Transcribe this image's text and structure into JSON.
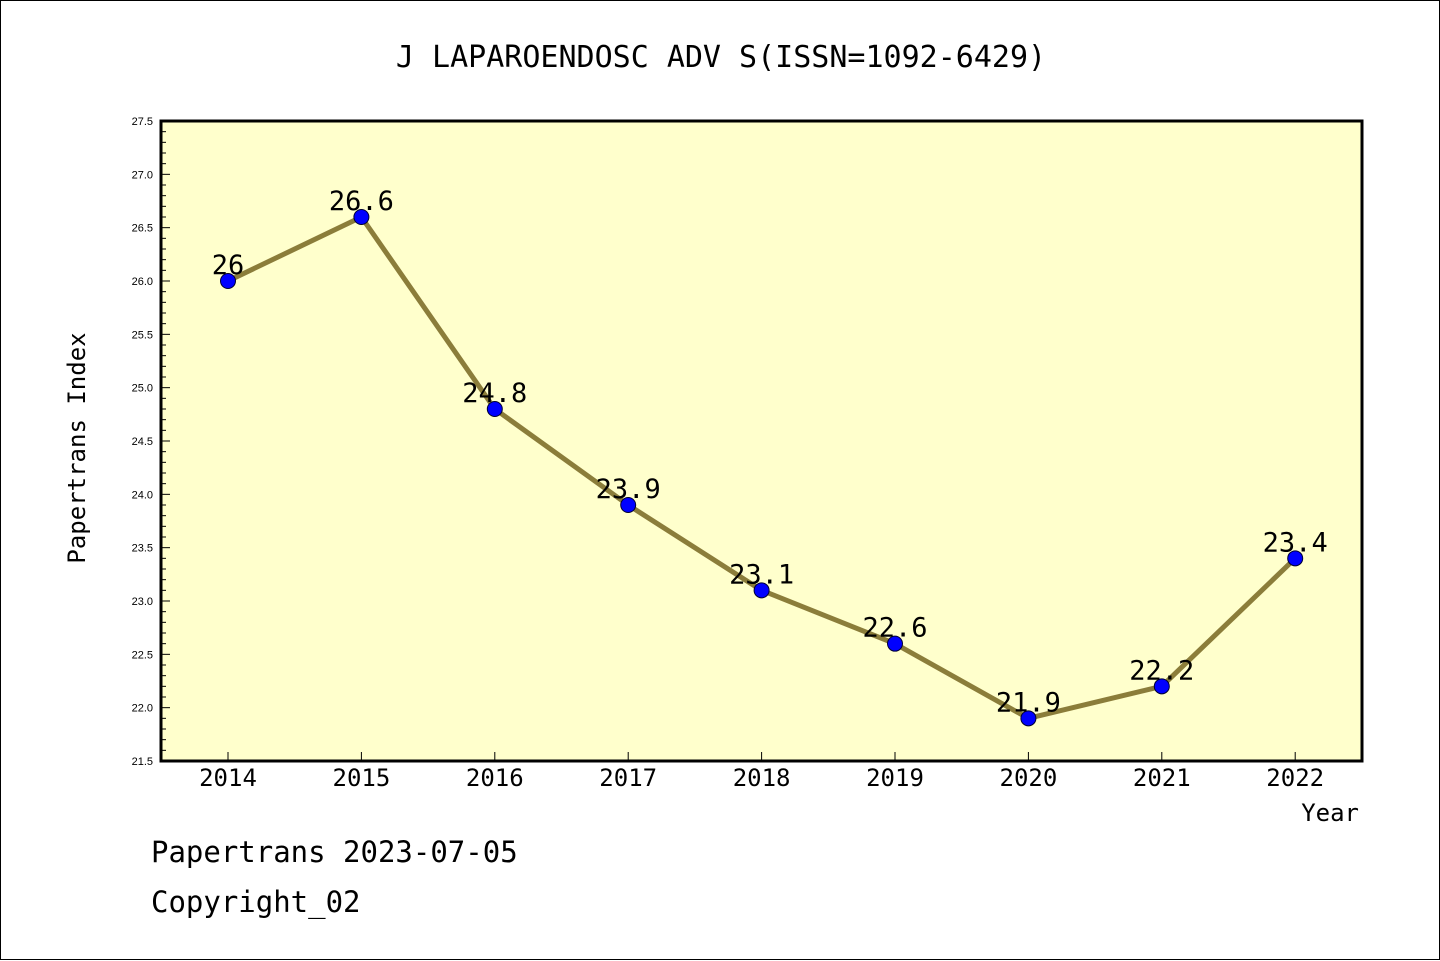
{
  "chart_data": {
    "type": "line",
    "title": "J LAPAROENDOSC ADV S(ISSN=1092-6429)",
    "xlabel": "Year",
    "ylabel": "Papertrans Index",
    "x": [
      "2014",
      "2015",
      "2016",
      "2017",
      "2018",
      "2019",
      "2020",
      "2021",
      "2022"
    ],
    "values": [
      26,
      26.6,
      24.8,
      23.9,
      23.1,
      22.6,
      21.9,
      22.2,
      23.4
    ],
    "data_labels": [
      "26",
      "26.6",
      "24.8",
      "23.9",
      "23.1",
      "22.6",
      "21.9",
      "22.2",
      "23.4"
    ],
    "ylim": [
      21.5,
      27.5
    ],
    "yticks": [
      "21.5",
      "22.0",
      "22.5",
      "23.0",
      "23.5",
      "24.0",
      "24.5",
      "25.0",
      "25.5",
      "26.0",
      "26.5",
      "27.0",
      "27.5"
    ],
    "grid": false,
    "legend": "none",
    "colors": {
      "plot_background": "#ffffcc",
      "line": "#8b7d3a",
      "marker": "#0000ff"
    }
  },
  "footer": {
    "line1": "Papertrans 2023-07-05",
    "line2": "Copyright_02"
  }
}
